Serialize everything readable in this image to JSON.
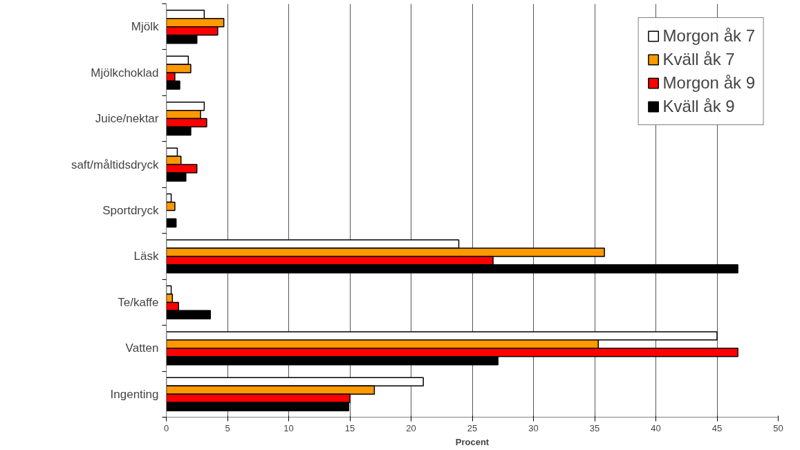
{
  "chart_data": {
    "type": "bar",
    "orientation": "horizontal",
    "xlabel": "Procent",
    "categories": [
      "Mjölk",
      "Mjölkchoklad",
      "Juice/nektar",
      "saft/måltidsdryck",
      "Sportdryck",
      "Läsk",
      "Te/kaffe",
      "Vatten",
      "Ingenting"
    ],
    "series": [
      {
        "name": "Morgon åk 7",
        "color": "#ffffff",
        "values": [
          3.1,
          1.8,
          3.1,
          0.9,
          0.4,
          23.9,
          0.4,
          45.0,
          21.0
        ]
      },
      {
        "name": "Kväll åk 7",
        "color": "#ff9900",
        "values": [
          4.7,
          2.0,
          2.8,
          1.2,
          0.7,
          35.8,
          0.5,
          35.3,
          17.0
        ]
      },
      {
        "name": "Morgon åk 9",
        "color": "#ff0000",
        "values": [
          4.2,
          0.7,
          3.3,
          2.5,
          null,
          26.7,
          1.0,
          46.7,
          15.0
        ]
      },
      {
        "name": "Kväll åk 9",
        "color": "#000000",
        "values": [
          2.5,
          1.1,
          2.0,
          1.6,
          0.8,
          46.7,
          3.6,
          27.1,
          14.9
        ]
      }
    ],
    "xlim": [
      0,
      50
    ],
    "xticks": [
      0,
      5,
      10,
      15,
      20,
      25,
      30,
      35,
      40,
      45,
      50
    ],
    "grid": "x",
    "legend": "top right"
  }
}
